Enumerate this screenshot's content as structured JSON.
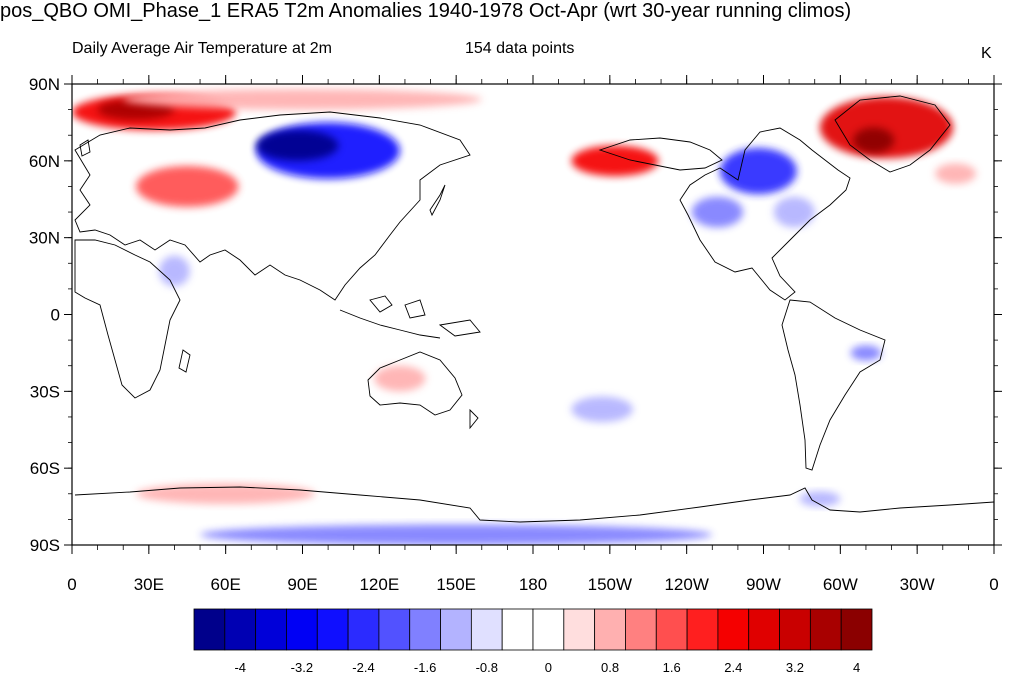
{
  "title": "pos_QBO OMI_Phase_1 ERA5 T2m Anomalies 1940-1978 Oct-Apr (wrt 30-year running climos)",
  "subtitle_left": "Daily Average Air Temperature at 2m",
  "subtitle_center": "154 data points",
  "units": "K",
  "lat_labels": [
    "90N",
    "60N",
    "30N",
    "0",
    "30S",
    "60S",
    "90S"
  ],
  "lat_values": [
    90,
    60,
    30,
    0,
    -30,
    -60,
    -90
  ],
  "lon_labels": [
    "0",
    "30E",
    "60E",
    "90E",
    "120E",
    "150E",
    "180",
    "150W",
    "120W",
    "90W",
    "60W",
    "30W",
    "0"
  ],
  "lon_values": [
    0,
    30,
    60,
    90,
    120,
    150,
    180,
    210,
    240,
    270,
    300,
    330,
    360
  ],
  "colorbar": {
    "labels": [
      "-4",
      "-3.2",
      "-2.4",
      "-1.6",
      "-0.8",
      "0",
      "0.8",
      "1.6",
      "2.4",
      "3.2",
      "4"
    ],
    "colors": [
      "#00008b",
      "#0000b3",
      "#0000d9",
      "#0000f5",
      "#0f0fff",
      "#2b2bff",
      "#5252ff",
      "#8080ff",
      "#b3b3ff",
      "#e0e0ff",
      "#ffffff",
      "#ffffff",
      "#ffdede",
      "#ffb0b0",
      "#ff8080",
      "#ff4f4f",
      "#ff1f1f",
      "#f50000",
      "#e00000",
      "#c90000",
      "#a80000",
      "#8b0000"
    ]
  },
  "anomalies": [
    {
      "name": "arctic-europe-warm",
      "lon": 32,
      "lat": 79,
      "rlon": 32,
      "rlat": 7,
      "value": 2.6
    },
    {
      "name": "arctic-europe-warm-core",
      "lon": 25,
      "lat": 80,
      "rlon": 15,
      "rlat": 4,
      "value": 3.8
    },
    {
      "name": "arctic-band-warm",
      "lon": 90,
      "lat": 84,
      "rlon": 70,
      "rlat": 4,
      "value": 1.0
    },
    {
      "name": "siberia-cold",
      "lon": 100,
      "lat": 64,
      "rlon": 28,
      "rlat": 11,
      "value": -2.6
    },
    {
      "name": "siberia-cold-core",
      "lon": 88,
      "lat": 66,
      "rlon": 16,
      "rlat": 6,
      "value": -4.2
    },
    {
      "name": "central-asia-warm",
      "lon": 45,
      "lat": 50,
      "rlon": 20,
      "rlat": 8,
      "value": 1.8
    },
    {
      "name": "greenland-warm",
      "lon": 318,
      "lat": 73,
      "rlon": 26,
      "rlat": 12,
      "value": 2.8
    },
    {
      "name": "greenland-warm-core",
      "lon": 313,
      "lat": 68,
      "rlon": 8,
      "rlat": 5,
      "value": 4.2
    },
    {
      "name": "alaska-warm",
      "lon": 212,
      "lat": 60,
      "rlon": 17,
      "rlat": 6,
      "value": 2.4
    },
    {
      "name": "canada-cold",
      "lon": 268,
      "lat": 56,
      "rlon": 15,
      "rlat": 9,
      "value": -2.2
    },
    {
      "name": "us-cold",
      "lon": 252,
      "lat": 40,
      "rlon": 10,
      "rlat": 6,
      "value": -1.4
    },
    {
      "name": "north-atlantic-warm",
      "lon": 345,
      "lat": 55,
      "rlon": 8,
      "rlat": 4,
      "value": 0.9
    },
    {
      "name": "east-us-cold",
      "lon": 282,
      "lat": 40,
      "rlon": 8,
      "rlat": 6,
      "value": -1.0
    },
    {
      "name": "australia-warm",
      "lon": 128,
      "lat": -25,
      "rlon": 10,
      "rlat": 5,
      "value": 1.0
    },
    {
      "name": "south-pacific-cold",
      "lon": 207,
      "lat": -37,
      "rlon": 12,
      "rlat": 5,
      "value": -0.9
    },
    {
      "name": "brazil-cold",
      "lon": 310,
      "lat": -15,
      "rlon": 6,
      "rlat": 3,
      "value": -1.3
    },
    {
      "name": "southern-ocean-warm",
      "lon": 60,
      "lat": -70,
      "rlon": 35,
      "rlat": 4,
      "value": 0.9
    },
    {
      "name": "antarctica-cold",
      "lon": 150,
      "lat": -86,
      "rlon": 100,
      "rlat": 4,
      "value": -1.4
    },
    {
      "name": "antarctic-peninsula-cold",
      "lon": 292,
      "lat": -72,
      "rlon": 8,
      "rlat": 3,
      "value": -1.2
    },
    {
      "name": "arabia-cold",
      "lon": 40,
      "lat": 17,
      "rlon": 6,
      "rlat": 6,
      "value": -1.0
    }
  ]
}
